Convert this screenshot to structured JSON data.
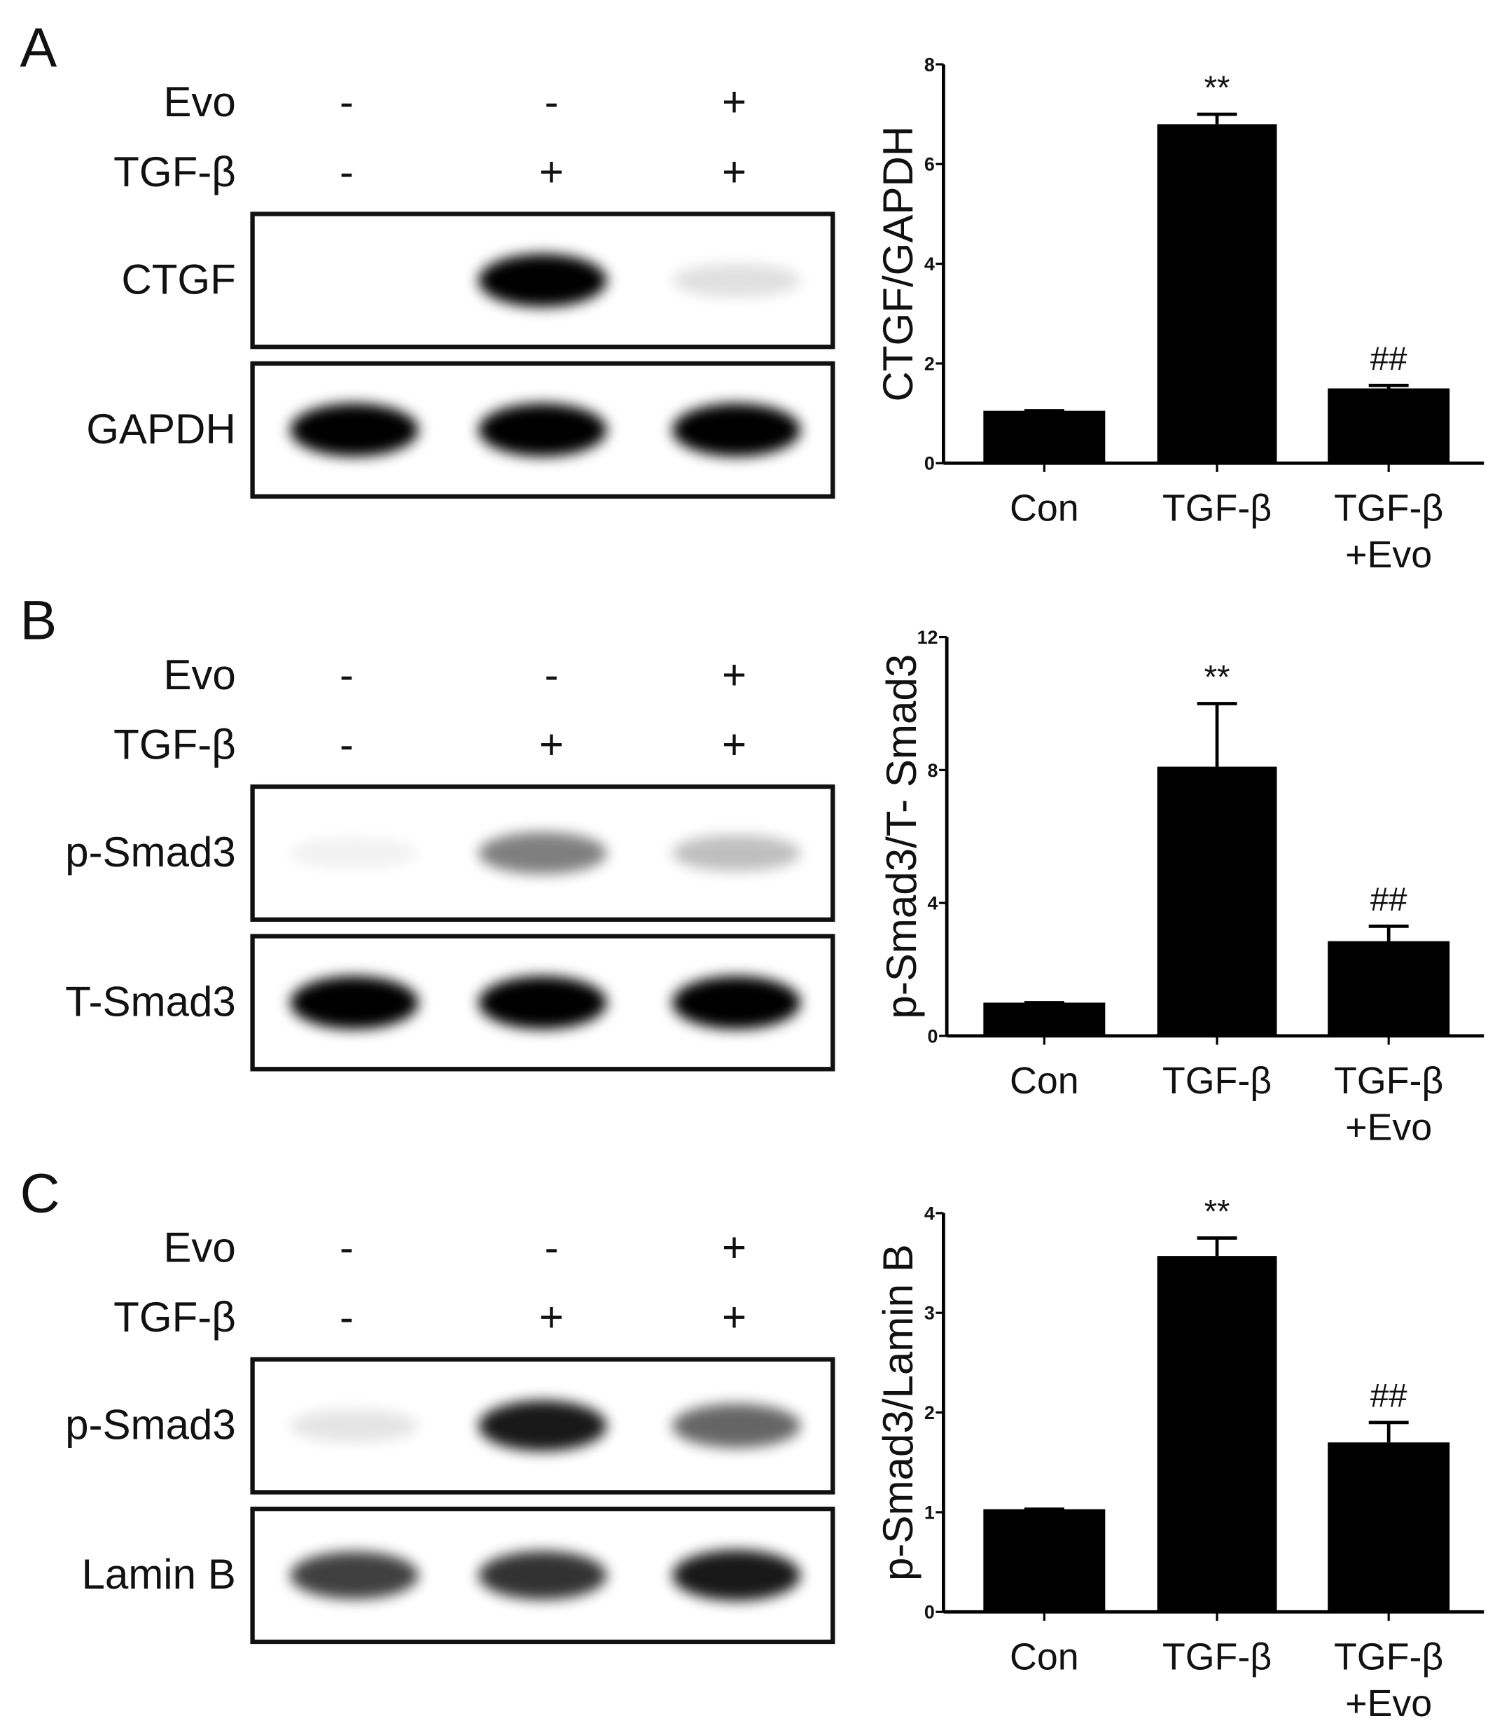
{
  "chart_data": [
    {
      "type": "bar",
      "ylabel": "CTGF/GAPDH",
      "categories": [
        "Con",
        "TGF-β",
        "TGF-β\n+Evo"
      ],
      "values": [
        1.05,
        6.8,
        1.5
      ],
      "errors": [
        0,
        0.2,
        0.06
      ],
      "color": "#000000",
      "annotations": [
        {
          "index": 1,
          "text": "**"
        },
        {
          "index": 2,
          "text": "##"
        }
      ],
      "ylim": [
        0,
        8
      ],
      "yticks": [
        0,
        2,
        4,
        6,
        8
      ]
    },
    {
      "type": "bar",
      "ylabel": "p-Smad3/T- Smad3",
      "categories": [
        "Con",
        "TGF-β",
        "TGF-β\n+Evo"
      ],
      "values": [
        1.0,
        8.1,
        2.85
      ],
      "errors": [
        0,
        1.9,
        0.45
      ],
      "color": "#000000",
      "annotations": [
        {
          "index": 1,
          "text": "**"
        },
        {
          "index": 2,
          "text": "##"
        }
      ],
      "ylim": [
        0,
        12
      ],
      "yticks": [
        0,
        4,
        8,
        12
      ]
    },
    {
      "type": "bar",
      "ylabel": "p-Smad3/Lamin B",
      "categories": [
        "Con",
        "TGF-β",
        "TGF-β\n+Evo"
      ],
      "values": [
        1.03,
        3.57,
        1.7
      ],
      "errors": [
        0,
        0.18,
        0.2
      ],
      "color": "#000000",
      "annotations": [
        {
          "index": 1,
          "text": "**"
        },
        {
          "index": 2,
          "text": "##"
        }
      ],
      "ylim": [
        0,
        4
      ],
      "yticks": [
        0,
        1,
        2,
        3,
        4
      ]
    }
  ],
  "panels": [
    {
      "letter": "A",
      "treatments": [
        {
          "name": "Evo",
          "signs": [
            "-",
            "-",
            "+"
          ]
        },
        {
          "name": "TGF-β",
          "signs": [
            "-",
            "+",
            "+"
          ]
        }
      ],
      "blots": [
        "CTGF",
        "GAPDH"
      ]
    },
    {
      "letter": "B",
      "treatments": [
        {
          "name": "Evo",
          "signs": [
            "-",
            "-",
            "+"
          ]
        },
        {
          "name": "TGF-β",
          "signs": [
            "-",
            "+",
            "+"
          ]
        }
      ],
      "blots": [
        "p-Smad3",
        "T-Smad3"
      ]
    },
    {
      "letter": "C",
      "treatments": [
        {
          "name": "Evo",
          "signs": [
            "-",
            "-",
            "+"
          ]
        },
        {
          "name": "TGF-β",
          "signs": [
            "-",
            "+",
            "+"
          ]
        }
      ],
      "blots": [
        "p-Smad3",
        "Lamin B"
      ]
    }
  ]
}
